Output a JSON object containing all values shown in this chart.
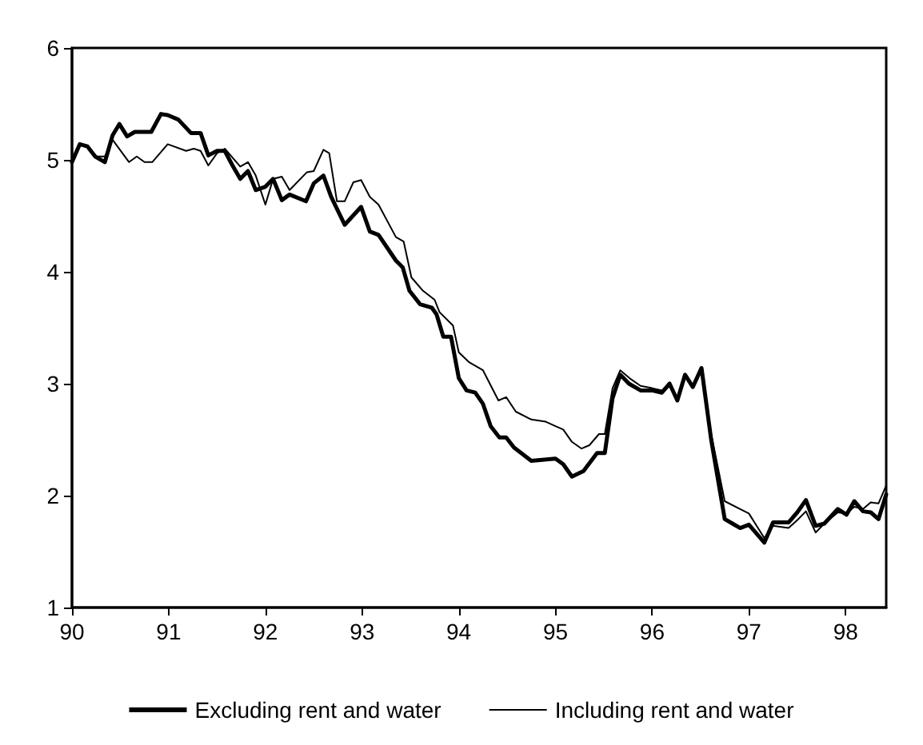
{
  "chart_data": {
    "type": "line",
    "xlim": [
      90,
      98.42
    ],
    "xticks": [
      90,
      91,
      92,
      93,
      94,
      95,
      96,
      97,
      98
    ],
    "ylim": [
      1,
      6
    ],
    "yticks": [
      1,
      2,
      3,
      4,
      5,
      6
    ],
    "grid": false,
    "legend": "bottom",
    "marker": "none",
    "series": [
      {
        "name": "Excluding rent and water",
        "color": "#000000",
        "x": [
          90,
          90.08,
          90.16,
          90.24,
          90.34,
          90.42,
          90.49,
          90.57,
          90.65,
          90.82,
          90.92,
          90.99,
          91.1,
          91.23,
          91.33,
          91.41,
          91.5,
          91.58,
          91.66,
          91.74,
          91.82,
          91.9,
          92.0,
          92.08,
          92.17,
          92.25,
          92.42,
          92.5,
          92.6,
          92.68,
          92.82,
          92.99,
          93.08,
          93.17,
          93.35,
          93.42,
          93.49,
          93.6,
          93.72,
          93.77,
          93.84,
          93.92,
          94.0,
          94.08,
          94.17,
          94.25,
          94.33,
          94.42,
          94.49,
          94.57,
          94.75,
          95.0,
          95.08,
          95.17,
          95.29,
          95.43,
          95.51,
          95.59,
          95.67,
          95.76,
          95.88,
          96.0,
          96.1,
          96.18,
          96.26,
          96.34,
          96.42,
          96.51,
          96.61,
          96.75,
          96.83,
          96.91,
          97.0,
          97.16,
          97.25,
          97.41,
          97.5,
          97.59,
          97.69,
          97.78,
          97.92,
          98.01,
          98.09,
          98.18,
          98.26,
          98.34,
          98.42
        ],
        "values": [
          4.98,
          5.14,
          5.12,
          5.03,
          4.98,
          5.22,
          5.32,
          5.21,
          5.25,
          5.25,
          5.41,
          5.4,
          5.36,
          5.24,
          5.24,
          5.04,
          5.08,
          5.08,
          4.95,
          4.83,
          4.9,
          4.73,
          4.76,
          4.83,
          4.64,
          4.69,
          4.63,
          4.79,
          4.86,
          4.67,
          4.42,
          4.58,
          4.36,
          4.33,
          4.1,
          4.04,
          3.83,
          3.71,
          3.68,
          3.62,
          3.42,
          3.42,
          3.05,
          2.94,
          2.92,
          2.82,
          2.62,
          2.52,
          2.52,
          2.43,
          2.31,
          2.33,
          2.28,
          2.17,
          2.22,
          2.38,
          2.38,
          2.87,
          3.08,
          3.0,
          2.94,
          2.94,
          2.92,
          3.0,
          2.85,
          3.08,
          2.97,
          3.14,
          2.5,
          1.79,
          1.75,
          1.71,
          1.74,
          1.58,
          1.76,
          1.76,
          1.85,
          1.96,
          1.73,
          1.75,
          1.88,
          1.83,
          1.95,
          1.86,
          1.85,
          1.79,
          2.01
        ]
      },
      {
        "name": "Including rent and water",
        "color": "#000000",
        "x": [
          90,
          90.08,
          90.16,
          90.24,
          90.34,
          90.42,
          90.59,
          90.67,
          90.75,
          90.83,
          90.99,
          91.18,
          91.26,
          91.33,
          91.41,
          91.5,
          91.58,
          91.74,
          91.82,
          91.9,
          92.0,
          92.08,
          92.17,
          92.25,
          92.43,
          92.5,
          92.6,
          92.66,
          92.74,
          92.82,
          92.91,
          92.99,
          93.08,
          93.17,
          93.35,
          93.43,
          93.51,
          93.63,
          93.75,
          93.8,
          93.94,
          94.0,
          94.11,
          94.25,
          94.41,
          94.49,
          94.59,
          94.75,
          94.9,
          95.0,
          95.08,
          95.17,
          95.27,
          95.35,
          95.45,
          95.51,
          95.59,
          95.67,
          95.78,
          95.88,
          96.0,
          96.1,
          96.18,
          96.26,
          96.34,
          96.42,
          96.51,
          96.61,
          96.75,
          96.91,
          97.0,
          97.16,
          97.25,
          97.41,
          97.5,
          97.59,
          97.69,
          97.78,
          97.92,
          98.01,
          98.09,
          98.18,
          98.26,
          98.34,
          98.42
        ],
        "values": [
          4.98,
          5.14,
          5.12,
          5.03,
          5.03,
          5.18,
          4.98,
          5.03,
          4.98,
          4.98,
          5.14,
          5.08,
          5.1,
          5.08,
          4.95,
          5.06,
          5.1,
          4.94,
          4.98,
          4.86,
          4.6,
          4.83,
          4.85,
          4.73,
          4.89,
          4.9,
          5.09,
          5.06,
          4.63,
          4.63,
          4.8,
          4.82,
          4.67,
          4.6,
          4.31,
          4.27,
          3.95,
          3.83,
          3.75,
          3.64,
          3.52,
          3.28,
          3.19,
          3.12,
          2.85,
          2.88,
          2.75,
          2.68,
          2.66,
          2.62,
          2.59,
          2.48,
          2.42,
          2.45,
          2.55,
          2.55,
          2.96,
          3.12,
          3.04,
          2.98,
          2.96,
          2.94,
          3.0,
          2.85,
          3.08,
          2.97,
          3.14,
          2.55,
          1.95,
          1.88,
          1.84,
          1.62,
          1.73,
          1.71,
          1.78,
          1.86,
          1.67,
          1.75,
          1.85,
          1.84,
          1.9,
          1.88,
          1.94,
          1.93,
          2.09
        ]
      }
    ]
  }
}
